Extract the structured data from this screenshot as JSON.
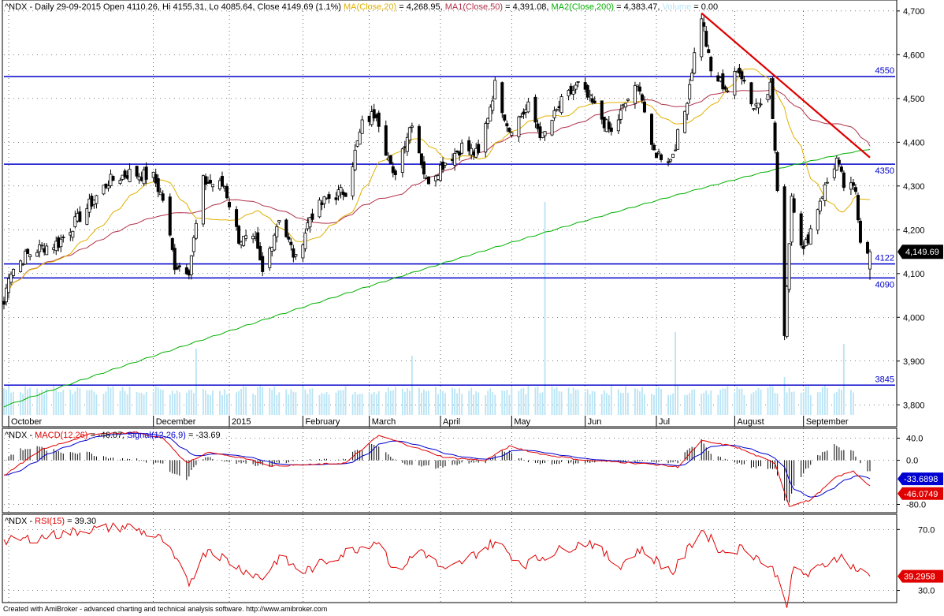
{
  "header": {
    "prefix": "^NDX - Daily 29-09-2015 Open 4110.26, Hi 4155.31, Lo 4085.64, Close 4149.69 (1.1%)",
    "ma20_label": "MA(Close,20)",
    "ma20_value": " = 4,268.95,",
    "ma50_label": "MA1(Close,50)",
    "ma50_value": " = 4,391.08,",
    "ma200_label": "MA2(Close,200)",
    "ma200_value": " = 4,383.47,",
    "volume_label": "Volume",
    "volume_value": " = 0.00"
  },
  "macd_header": {
    "prefix": "^NDX - ",
    "macd_label": "MACD(12,26)",
    "macd_value": " = -46.07, ",
    "signal_label": "Signal(12,26,9)",
    "signal_value": " = -33.69"
  },
  "rsi_header": {
    "prefix": "^NDX - ",
    "rsi_label": "RSI(15)",
    "rsi_value": " = 39.30"
  },
  "footer_text": "Created with AmiBroker - advanced charting and technical analysis software. http://www.amibroker.com",
  "colors": {
    "ma20": "#e0b000",
    "ma50": "#b0304a",
    "ma200": "#00b000",
    "volume": "#b8e4f5",
    "hlines": "#0000cc",
    "trendline": "#e00000",
    "macd": "#e00000",
    "signal": "#0000d0",
    "rsi": "#e00000"
  },
  "chart_data": [
    {
      "type": "candlestick",
      "ylim": [
        3750,
        4725
      ],
      "y_ticks": [
        3800,
        3900,
        4000,
        4100,
        4200,
        4300,
        4400,
        4500,
        4600,
        4700
      ],
      "y_tick_labels": [
        "3,800",
        "3,900",
        "4,000",
        "4,100",
        "4,200",
        "4,300",
        "4,400",
        "4,500",
        "4,600",
        "4,700"
      ],
      "x_labels": [
        "October",
        "December",
        "2015",
        "February",
        "March",
        "April",
        "May",
        "Jun",
        "Jul",
        "August",
        "September"
      ],
      "x_label_dates": [
        "2014-10-01",
        "2014-12-01",
        "2015-01-02",
        "2015-02-02",
        "2015-03-02",
        "2015-04-01",
        "2015-05-01",
        "2015-06-01",
        "2015-07-01",
        "2015-08-03",
        "2015-09-01"
      ],
      "date_range": [
        "2014-09-29",
        "2015-09-29"
      ],
      "anchors": [
        [
          "2014-09-29",
          4030
        ],
        [
          "2014-10-01",
          4100
        ],
        [
          "2014-10-08",
          4140
        ],
        [
          "2014-10-15",
          4160
        ],
        [
          "2014-10-22",
          4170
        ],
        [
          "2014-11-03",
          4250
        ],
        [
          "2014-11-12",
          4310
        ],
        [
          "2014-11-21",
          4330
        ],
        [
          "2014-12-01",
          4320
        ],
        [
          "2014-12-05",
          4270
        ],
        [
          "2014-12-10",
          4120
        ],
        [
          "2014-12-16",
          4110
        ],
        [
          "2014-12-22",
          4310
        ],
        [
          "2014-12-31",
          4300
        ],
        [
          "2015-01-06",
          4180
        ],
        [
          "2015-01-13",
          4170
        ],
        [
          "2015-01-16",
          4100
        ],
        [
          "2015-01-23",
          4230
        ],
        [
          "2015-01-30",
          4130
        ],
        [
          "2015-02-05",
          4230
        ],
        [
          "2015-02-12",
          4270
        ],
        [
          "2015-02-20",
          4290
        ],
        [
          "2015-02-27",
          4440
        ],
        [
          "2015-03-05",
          4470
        ],
        [
          "2015-03-12",
          4320
        ],
        [
          "2015-03-20",
          4450
        ],
        [
          "2015-03-26",
          4310
        ],
        [
          "2015-04-02",
          4350
        ],
        [
          "2015-04-10",
          4390
        ],
        [
          "2015-04-17",
          4370
        ],
        [
          "2015-04-24",
          4530
        ],
        [
          "2015-04-30",
          4430
        ],
        [
          "2015-05-08",
          4480
        ],
        [
          "2015-05-14",
          4410
        ],
        [
          "2015-05-22",
          4490
        ],
        [
          "2015-05-29",
          4530
        ],
        [
          "2015-06-05",
          4480
        ],
        [
          "2015-06-12",
          4420
        ],
        [
          "2015-06-19",
          4500
        ],
        [
          "2015-06-24",
          4530
        ],
        [
          "2015-06-29",
          4380
        ],
        [
          "2015-07-07",
          4360
        ],
        [
          "2015-07-13",
          4470
        ],
        [
          "2015-07-17",
          4600
        ],
        [
          "2015-07-20",
          4690
        ],
        [
          "2015-07-24",
          4560
        ],
        [
          "2015-07-31",
          4520
        ],
        [
          "2015-08-05",
          4570
        ],
        [
          "2015-08-11",
          4480
        ],
        [
          "2015-08-18",
          4530
        ],
        [
          "2015-08-20",
          4380
        ],
        [
          "2015-08-24",
          3970
        ],
        [
          "2015-08-27",
          4280
        ],
        [
          "2015-09-01",
          4150
        ],
        [
          "2015-09-08",
          4270
        ],
        [
          "2015-09-15",
          4360
        ],
        [
          "2015-09-18",
          4300
        ],
        [
          "2015-09-23",
          4290
        ],
        [
          "2015-09-25",
          4180
        ],
        [
          "2015-09-29",
          4150
        ]
      ],
      "last_close": 4149.69,
      "last_close_label": "4,149.69",
      "ma20_last": 4268.95,
      "ma50_last": 4391.08,
      "ma200_last": 4383.47,
      "ma200_start": 3795,
      "horizontal_lines": [
        {
          "value": 4550,
          "label": "4550"
        },
        {
          "value": 4350,
          "label": "4350"
        },
        {
          "value": 4122,
          "label": "4122"
        },
        {
          "value": 4090,
          "label": "4090"
        },
        {
          "value": 3845,
          "label": "3845"
        }
      ],
      "trendline": [
        [
          "2015-07-20",
          4695
        ],
        [
          "2015-09-29",
          4365
        ]
      ],
      "volume_spikes": [
        [
          "2015-05-15",
          0.9
        ],
        [
          "2015-08-24",
          0.16
        ],
        [
          "2015-07-09",
          0.35
        ],
        [
          "2015-09-18",
          0.3
        ],
        [
          "2014-12-19",
          0.28
        ],
        [
          "2015-03-20",
          0.25
        ]
      ]
    },
    {
      "type": "line",
      "name": "MACD",
      "ylim": [
        -95,
        58
      ],
      "y_ticks": [
        40,
        0,
        -80
      ],
      "y_tick_labels": [
        "40.0",
        "0.0",
        "-80.0"
      ],
      "macd_anchors": [
        [
          "2014-09-29",
          -28
        ],
        [
          "2014-10-15",
          20
        ],
        [
          "2014-11-05",
          48
        ],
        [
          "2014-11-24",
          50
        ],
        [
          "2014-12-05",
          40
        ],
        [
          "2014-12-15",
          -5
        ],
        [
          "2014-12-24",
          15
        ],
        [
          "2015-01-07",
          5
        ],
        [
          "2015-01-20",
          -10
        ],
        [
          "2015-02-06",
          -8
        ],
        [
          "2015-02-20",
          -5
        ],
        [
          "2015-03-06",
          45
        ],
        [
          "2015-03-20",
          25
        ],
        [
          "2015-04-03",
          5
        ],
        [
          "2015-04-20",
          0
        ],
        [
          "2015-04-30",
          25
        ],
        [
          "2015-05-15",
          10
        ],
        [
          "2015-06-01",
          0
        ],
        [
          "2015-06-15",
          -3
        ],
        [
          "2015-07-01",
          -8
        ],
        [
          "2015-07-10",
          -12
        ],
        [
          "2015-07-20",
          35
        ],
        [
          "2015-08-03",
          25
        ],
        [
          "2015-08-14",
          5
        ],
        [
          "2015-08-20",
          -5
        ],
        [
          "2015-08-26",
          -83
        ],
        [
          "2015-09-04",
          -72
        ],
        [
          "2015-09-15",
          -30
        ],
        [
          "2015-09-22",
          -20
        ],
        [
          "2015-09-29",
          -46.07
        ]
      ],
      "macd_last": -46.07,
      "signal_last": -33.69,
      "macd_box_label": "-46.0749",
      "signal_box_label": "-33.6898"
    },
    {
      "type": "line",
      "name": "RSI",
      "ylim": [
        22,
        80
      ],
      "y_ticks": [
        70,
        30
      ],
      "y_tick_labels": [
        "70.0",
        "30.0"
      ],
      "anchors": [
        [
          "2014-09-29",
          62
        ],
        [
          "2014-10-15",
          65
        ],
        [
          "2014-11-03",
          70
        ],
        [
          "2014-11-21",
          72
        ],
        [
          "2014-12-05",
          63
        ],
        [
          "2014-12-16",
          35
        ],
        [
          "2014-12-24",
          58
        ],
        [
          "2015-01-06",
          45
        ],
        [
          "2015-01-16",
          38
        ],
        [
          "2015-01-23",
          52
        ],
        [
          "2015-02-02",
          42
        ],
        [
          "2015-02-20",
          55
        ],
        [
          "2015-03-06",
          63
        ],
        [
          "2015-03-13",
          42
        ],
        [
          "2015-03-24",
          57
        ],
        [
          "2015-04-03",
          42
        ],
        [
          "2015-04-24",
          62
        ],
        [
          "2015-05-06",
          47
        ],
        [
          "2015-05-22",
          57
        ],
        [
          "2015-06-03",
          62
        ],
        [
          "2015-06-15",
          46
        ],
        [
          "2015-06-24",
          57
        ],
        [
          "2015-07-08",
          42
        ],
        [
          "2015-07-20",
          70
        ],
        [
          "2015-07-29",
          55
        ],
        [
          "2015-08-07",
          58
        ],
        [
          "2015-08-14",
          50
        ],
        [
          "2015-08-20",
          42
        ],
        [
          "2015-08-25",
          22
        ],
        [
          "2015-08-28",
          44
        ],
        [
          "2015-09-03",
          40
        ],
        [
          "2015-09-16",
          53
        ],
        [
          "2015-09-24",
          43
        ],
        [
          "2015-09-29",
          39.3
        ]
      ],
      "rsi_last": 39.3,
      "rsi_box_label": "39.2958"
    }
  ]
}
